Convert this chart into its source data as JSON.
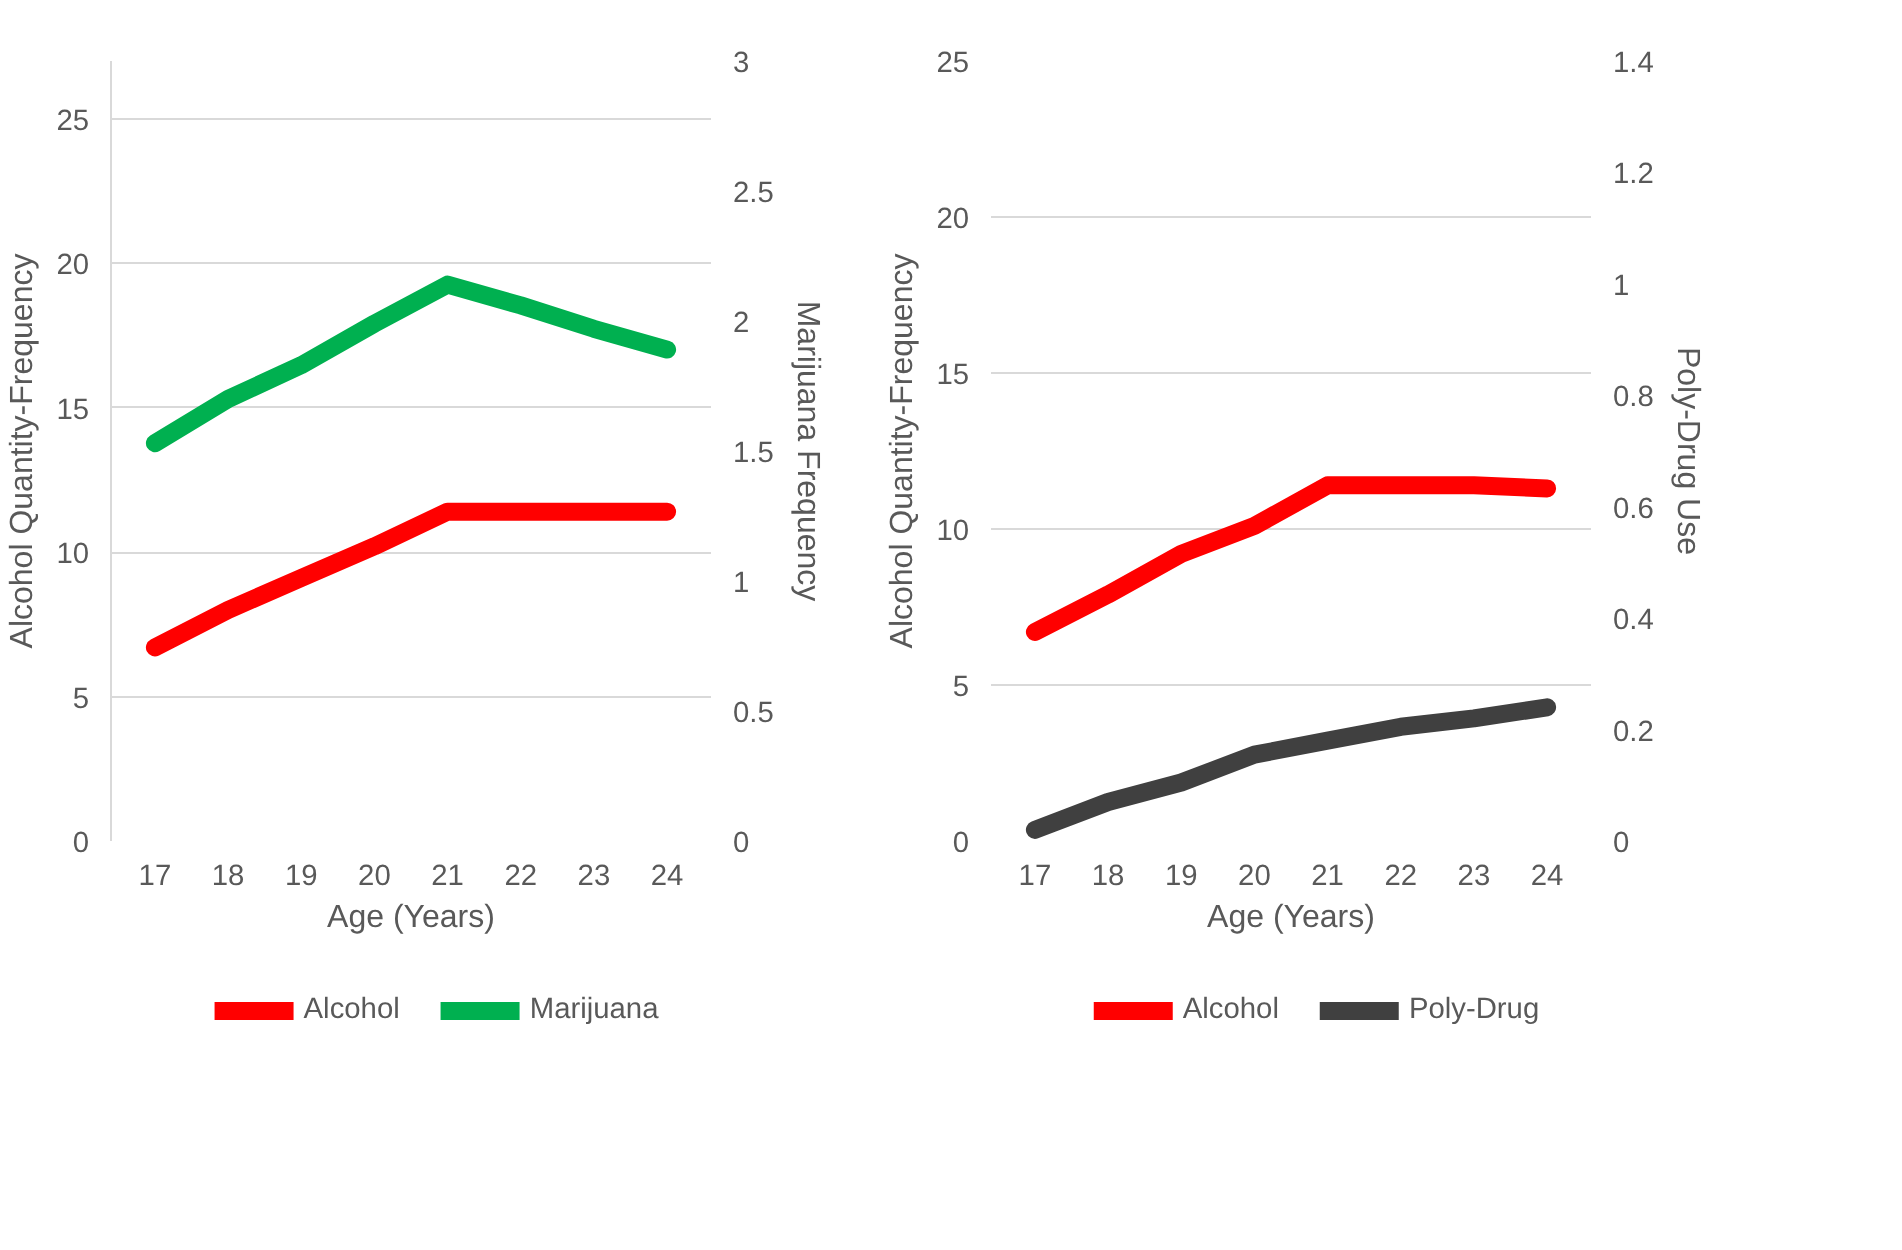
{
  "chart_data": [
    {
      "type": "line",
      "categories": [
        "17",
        "18",
        "19",
        "20",
        "21",
        "22",
        "23",
        "24"
      ],
      "xlabel": "Age (Years)",
      "ylabel": "Alcohol Quantity-Frequency",
      "y2label": "Marijuana Frequency",
      "ylim": [
        0,
        27
      ],
      "yticks": [
        0,
        5,
        10,
        15,
        20,
        25
      ],
      "y2lim": [
        0,
        3
      ],
      "y2ticks": [
        0,
        0.5,
        1,
        1.5,
        2,
        2.5,
        3
      ],
      "grid": "y",
      "legend": "bottom",
      "line_style": "solid",
      "series": [
        {
          "name": "Alcohol",
          "color": "#ff0000",
          "values": [
            6.7,
            8.0,
            9.1,
            10.2,
            11.4,
            11.4,
            11.4,
            11.4
          ]
        },
        {
          "name": "Marijuana",
          "color": "#00b050",
          "axis": "y2",
          "values": [
            1.53,
            1.7,
            1.83,
            1.99,
            2.14,
            2.06,
            1.97,
            1.89
          ]
        }
      ]
    },
    {
      "type": "line",
      "categories": [
        "17",
        "18",
        "19",
        "20",
        "21",
        "22",
        "23",
        "24"
      ],
      "xlabel": "Age (Years)",
      "ylabel": "Alcohol Quantity-Frequency",
      "y2label": "Poly-Drug Use",
      "ylim": [
        0,
        25
      ],
      "yticks": [
        0,
        5,
        10,
        15,
        20,
        25
      ],
      "y2lim": [
        0,
        1.4
      ],
      "y2ticks": [
        0,
        0.2,
        0.4,
        0.6,
        0.8,
        1,
        1.2,
        1.4
      ],
      "grid": "y",
      "legend": "bottom",
      "line_style": "solid",
      "series": [
        {
          "name": "Alcohol",
          "color": "#ff0000",
          "values": [
            6.7,
            7.9,
            9.2,
            10.1,
            11.4,
            11.4,
            11.4,
            11.3
          ]
        },
        {
          "name": "Poly-Drug",
          "color": "#404040",
          "axis": "y2",
          "values": [
            0.02,
            0.07,
            0.105,
            0.155,
            0.18,
            0.205,
            0.22,
            0.24
          ]
        }
      ]
    }
  ]
}
